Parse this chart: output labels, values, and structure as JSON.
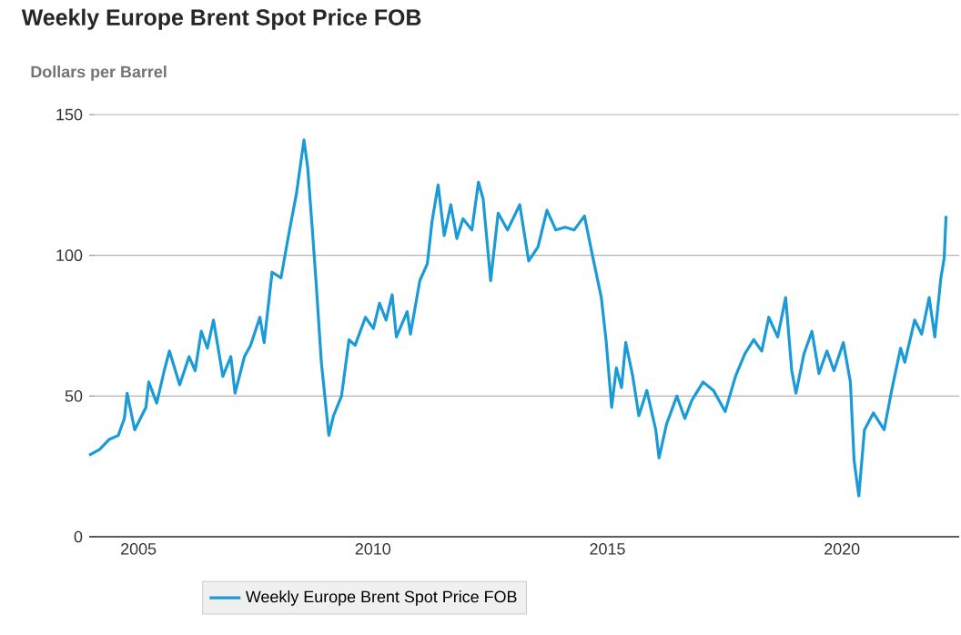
{
  "chart_data": {
    "type": "line",
    "title": "Weekly Europe Brent Spot Price FOB",
    "ylabel": "Dollars per Barrel",
    "xlim": [
      2003.95,
      2022.5
    ],
    "xticks": [
      2005,
      2010,
      2015,
      2020
    ],
    "ylim": [
      0,
      150
    ],
    "yticks": [
      0,
      50,
      100,
      150
    ],
    "grid": "y",
    "legend": "bottom",
    "series": [
      {
        "name": "Weekly Europe Brent Spot Price FOB",
        "color": "#1a9ad6",
        "x": [
          2003.95,
          2004.17,
          2004.37,
          2004.57,
          2004.7,
          2004.76,
          2004.92,
          2005.16,
          2005.22,
          2005.39,
          2005.55,
          2005.66,
          2005.88,
          2006.08,
          2006.21,
          2006.34,
          2006.47,
          2006.6,
          2006.8,
          2006.97,
          2007.06,
          2007.26,
          2007.39,
          2007.59,
          2007.68,
          2007.85,
          2008.04,
          2008.2,
          2008.37,
          2008.53,
          2008.61,
          2008.7,
          2008.79,
          2008.9,
          2009.06,
          2009.16,
          2009.33,
          2009.49,
          2009.62,
          2009.84,
          2010.01,
          2010.14,
          2010.28,
          2010.41,
          2010.5,
          2010.73,
          2010.8,
          2011.0,
          2011.16,
          2011.26,
          2011.39,
          2011.52,
          2011.66,
          2011.79,
          2011.92,
          2012.11,
          2012.25,
          2012.35,
          2012.51,
          2012.67,
          2012.87,
          2013.13,
          2013.32,
          2013.52,
          2013.71,
          2013.9,
          2014.1,
          2014.29,
          2014.51,
          2014.68,
          2014.87,
          2014.97,
          2015.09,
          2015.19,
          2015.3,
          2015.39,
          2015.54,
          2015.67,
          2015.84,
          2016.03,
          2016.1,
          2016.26,
          2016.48,
          2016.65,
          2016.8,
          2017.04,
          2017.26,
          2017.51,
          2017.73,
          2017.93,
          2018.12,
          2018.29,
          2018.44,
          2018.63,
          2018.8,
          2018.93,
          2019.02,
          2019.19,
          2019.36,
          2019.51,
          2019.68,
          2019.83,
          2020.03,
          2020.18,
          2020.26,
          2020.36,
          2020.48,
          2020.67,
          2020.9,
          2021.06,
          2021.25,
          2021.34,
          2021.55,
          2021.7,
          2021.86,
          2021.98,
          2022.11,
          2022.18,
          2022.22
        ],
        "values": [
          29,
          31,
          34.5,
          36,
          42,
          51,
          38,
          46,
          55,
          47.5,
          59,
          66,
          54,
          64,
          59,
          73,
          67,
          77,
          57,
          64,
          51,
          64,
          68,
          78,
          69,
          94,
          92,
          107,
          122,
          141,
          131,
          111,
          90,
          62,
          36,
          43,
          50,
          70,
          68,
          78,
          74,
          83,
          77,
          86,
          71,
          80,
          72,
          91,
          97,
          112,
          125,
          107,
          118,
          106,
          113,
          109,
          126,
          120,
          91,
          115,
          109,
          118,
          98,
          103,
          116,
          109,
          110,
          109,
          114,
          100,
          85,
          70,
          46,
          60,
          53,
          69,
          57,
          43,
          52,
          38,
          28,
          40,
          50,
          42,
          48.5,
          55,
          52,
          44.5,
          57,
          65,
          70,
          66,
          78,
          71,
          85,
          59,
          51,
          65,
          73,
          58,
          66,
          59,
          69,
          55,
          27,
          14.5,
          38,
          44,
          38,
          52,
          67,
          62,
          77,
          72,
          85,
          71,
          92,
          99,
          114
        ]
      }
    ]
  }
}
